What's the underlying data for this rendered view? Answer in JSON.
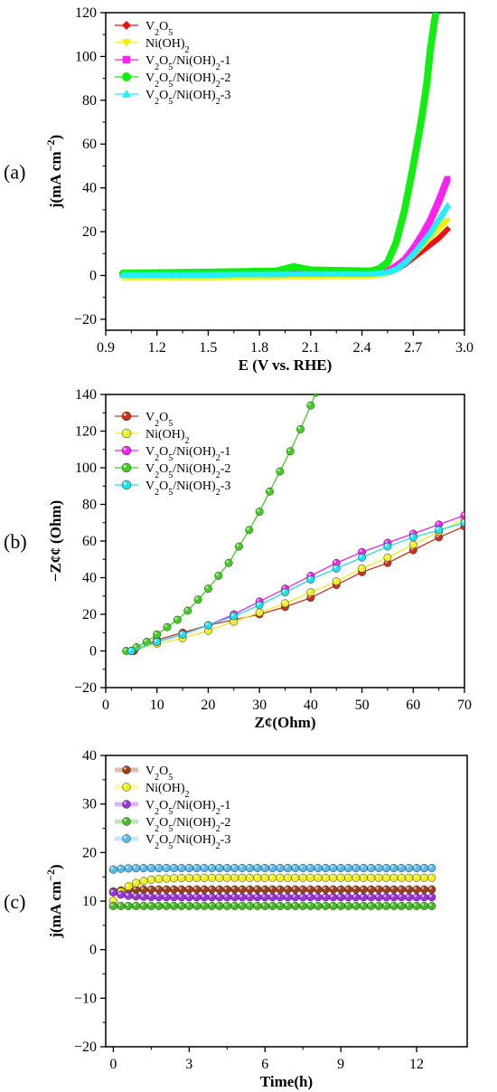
{
  "chart_data": [
    {
      "type": "line",
      "panel_label": "(a)",
      "xlabel": "E (V vs. RHE)",
      "ylabel": "j(mA cm−2)",
      "ylabel_main": "j(mA cm",
      "ylabel_sup": "−2",
      "ylabel_close": ")",
      "xlim": [
        0.9,
        3.0
      ],
      "ylim": [
        -25,
        120
      ],
      "xticks": [
        "0.9",
        "1.2",
        "1.5",
        "1.8",
        "2.1",
        "2.4",
        "2.7",
        "3.0"
      ],
      "yticks": [
        "−20",
        "0",
        "20",
        "40",
        "60",
        "80",
        "100",
        "120"
      ],
      "legend": [
        "V2O5",
        "Ni(OH)2",
        "V2O5/Ni(OH)2-1",
        "V2O5/Ni(OH)2-2",
        "V2O5/Ni(OH)2-3"
      ],
      "series": [
        {
          "name": "V2O5",
          "marker": "diamond",
          "color": "#ee1111",
          "x": [
            1.0,
            1.5,
            2.0,
            2.45,
            2.55,
            2.6,
            2.65,
            2.7,
            2.75,
            2.8,
            2.85,
            2.9
          ],
          "y": [
            1.0,
            1.2,
            1.3,
            1.3,
            1.8,
            3,
            5,
            8,
            11,
            14,
            17,
            21
          ]
        },
        {
          "name": "Ni(OH)2",
          "marker": "triangle-down",
          "color": "#f2f200",
          "x": [
            1.0,
            1.5,
            2.0,
            2.45,
            2.55,
            2.6,
            2.65,
            2.7,
            2.75,
            2.8,
            2.85,
            2.9
          ],
          "y": [
            -1.0,
            -1.0,
            -0.5,
            -0.3,
            1,
            3,
            6,
            9,
            13,
            17,
            21,
            25
          ]
        },
        {
          "name": "V2O5/Ni(OH)2-1",
          "marker": "square",
          "color": "#ff22ee",
          "x": [
            1.0,
            1.5,
            2.0,
            2.45,
            2.55,
            2.6,
            2.65,
            2.7,
            2.75,
            2.8,
            2.85,
            2.9
          ],
          "y": [
            0.5,
            0.5,
            0.8,
            0.8,
            2,
            4,
            7,
            12,
            18,
            25,
            34,
            44
          ]
        },
        {
          "name": "V2O5/Ni(OH)2-2",
          "marker": "circle",
          "color": "#11ee11",
          "x": [
            1.0,
            1.5,
            1.9,
            2.0,
            2.1,
            2.45,
            2.5,
            2.55,
            2.6,
            2.65,
            2.7,
            2.75,
            2.78,
            2.8,
            2.83
          ],
          "y": [
            1.0,
            1.5,
            2.0,
            4.0,
            2.5,
            2.0,
            3,
            6,
            15,
            30,
            50,
            72,
            88,
            103,
            119
          ]
        },
        {
          "name": "V2O5/Ni(OH)2-3",
          "marker": "triangle-up",
          "color": "#22eeff",
          "x": [
            1.0,
            1.5,
            2.0,
            2.45,
            2.55,
            2.6,
            2.65,
            2.7,
            2.75,
            2.8,
            2.85,
            2.9
          ],
          "y": [
            0.3,
            0.3,
            0.6,
            0.6,
            1.5,
            3,
            6,
            10,
            15,
            20,
            26,
            32
          ]
        }
      ]
    },
    {
      "type": "scatter",
      "panel_label": "(b)",
      "xlabel": "Z¢(Ohm)",
      "ylabel": "−Z¢¢ (Ohm)",
      "xlim": [
        0,
        70
      ],
      "ylim": [
        -20,
        140
      ],
      "xticks": [
        "0",
        "10",
        "20",
        "30",
        "40",
        "50",
        "60",
        "70"
      ],
      "yticks": [
        "−20",
        "0",
        "20",
        "40",
        "60",
        "80",
        "100",
        "120",
        "140"
      ],
      "legend": [
        "V2O5",
        "Ni(OH)2",
        "V2O5/Ni(OH)2-1",
        "V2O5/Ni(OH)2-2",
        "V2O5/Ni(OH)2-3"
      ],
      "series": [
        {
          "name": "V2O5",
          "color": "#c83218",
          "x": [
            5.5,
            10,
            15,
            20,
            25,
            30,
            35,
            40,
            45,
            50,
            55,
            60,
            65,
            70
          ],
          "y": [
            0,
            6,
            10,
            14,
            17,
            20,
            24,
            29,
            36,
            43,
            48,
            55,
            62,
            68
          ]
        },
        {
          "name": "Ni(OH)2",
          "color": "#eeee22",
          "x": [
            5,
            10,
            15,
            20,
            25,
            30,
            35,
            40,
            45,
            50,
            55,
            60,
            65,
            70
          ],
          "y": [
            0,
            4,
            7,
            11,
            16,
            21,
            26,
            32,
            38,
            45,
            51,
            58,
            65,
            72
          ]
        },
        {
          "name": "V2O5/Ni(OH)2-1",
          "color": "#ee22ee",
          "x": [
            5,
            10,
            15,
            20,
            25,
            30,
            35,
            40,
            45,
            50,
            55,
            60,
            65,
            70
          ],
          "y": [
            0,
            5,
            9,
            14,
            20,
            27,
            34,
            41,
            48,
            54,
            59,
            64,
            69,
            74
          ]
        },
        {
          "name": "V2O5/Ni(OH)2-2",
          "color": "#44cc22",
          "x": [
            4,
            6,
            8,
            10,
            12,
            14,
            16,
            18,
            20,
            22,
            24,
            26,
            28,
            30,
            32,
            34,
            36,
            38,
            40,
            41
          ],
          "y": [
            0,
            2,
            5,
            9,
            13,
            17,
            22,
            28,
            34,
            41,
            48,
            57,
            66,
            76,
            87,
            98,
            109,
            121,
            134,
            141
          ]
        },
        {
          "name": "V2O5/Ni(OH)2-3",
          "color": "#22ddee",
          "x": [
            5,
            10,
            15,
            20,
            25,
            30,
            35,
            40,
            45,
            50,
            55,
            60,
            65,
            70
          ],
          "y": [
            0,
            5,
            9,
            14,
            19,
            25,
            32,
            39,
            45,
            51,
            57,
            62,
            66,
            70
          ]
        }
      ]
    },
    {
      "type": "scatter",
      "panel_label": "(c)",
      "xlabel": "Time(h)",
      "ylabel": "j(mA cm−2)",
      "ylabel_main": "j(mA cm",
      "ylabel_sup": "−2",
      "ylabel_close": ")",
      "xlim": [
        -0.3,
        14
      ],
      "ylim": [
        -20,
        40
      ],
      "xticks": [
        "0",
        "3",
        "6",
        "9",
        "12"
      ],
      "yticks": [
        "−20",
        "−10",
        "0",
        "10",
        "20",
        "30",
        "40"
      ],
      "legend": [
        "V2O5",
        "Ni(OH)2",
        "V2O5/Ni(OH)2-1",
        "V2O5/Ni(OH)2-2",
        "V2O5/Ni(OH)2-3"
      ],
      "series": [
        {
          "name": "V2O5",
          "color": "#a0401a",
          "start": 12.0,
          "plateau": 12.4,
          "tau": 0.4
        },
        {
          "name": "Ni(OH)2",
          "color": "#eeee22",
          "start": 10.0,
          "plateau": 14.8,
          "tau": 0.6
        },
        {
          "name": "V2O5/Ni(OH)2-1",
          "color": "#9933dd",
          "start": 11.8,
          "plateau": 10.8,
          "tau": 0.5
        },
        {
          "name": "V2O5/Ni(OH)2-2",
          "color": "#44bb22",
          "start": 9.0,
          "plateau": 9.0,
          "tau": 0.5
        },
        {
          "name": "V2O5/Ni(OH)2-3",
          "color": "#55bbee",
          "start": 16.5,
          "plateau": 16.8,
          "tau": 0.4
        }
      ],
      "time_x": [
        0,
        0.3,
        0.6,
        0.9,
        1.2,
        1.5,
        1.8,
        2.1,
        2.4,
        2.7,
        3.0,
        3.3,
        3.6,
        3.9,
        4.2,
        4.5,
        4.8,
        5.1,
        5.4,
        5.7,
        6.0,
        6.3,
        6.6,
        6.9,
        7.2,
        7.5,
        7.8,
        8.1,
        8.4,
        8.7,
        9.0,
        9.3,
        9.6,
        9.9,
        10.2,
        10.5,
        10.8,
        11.1,
        11.4,
        11.7,
        12.0,
        12.3,
        12.6
      ]
    }
  ]
}
